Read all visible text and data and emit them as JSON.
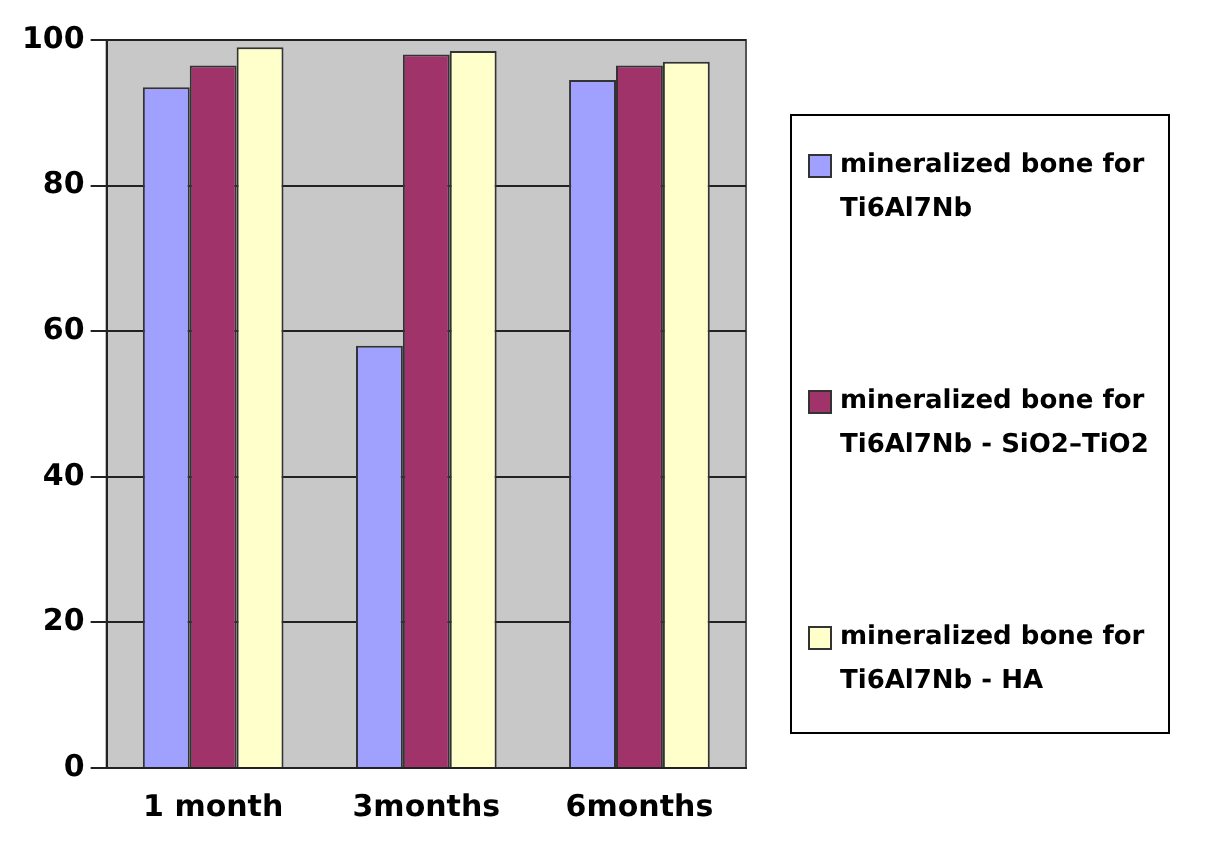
{
  "chart_data": {
    "type": "bar",
    "categories": [
      "1 month",
      "3months",
      "6months"
    ],
    "series": [
      {
        "name": "mineralized bone for Ti6Al7Nb",
        "color": "#a0a0ff",
        "values": [
          93.5,
          58,
          94.5
        ]
      },
      {
        "name": "mineralized bone for Ti6Al7Nb - SiO2–TiO2",
        "color": "#a0336a",
        "values": [
          96.5,
          98,
          96.5
        ]
      },
      {
        "name": "mineralized bone for Ti6Al7Nb - HA",
        "color": "#ffffcc",
        "values": [
          99,
          98.5,
          97
        ]
      }
    ],
    "ylim": [
      0,
      100
    ],
    "yticks": [
      0,
      20,
      40,
      60,
      80,
      100
    ],
    "grid": "y",
    "legend": "right"
  }
}
